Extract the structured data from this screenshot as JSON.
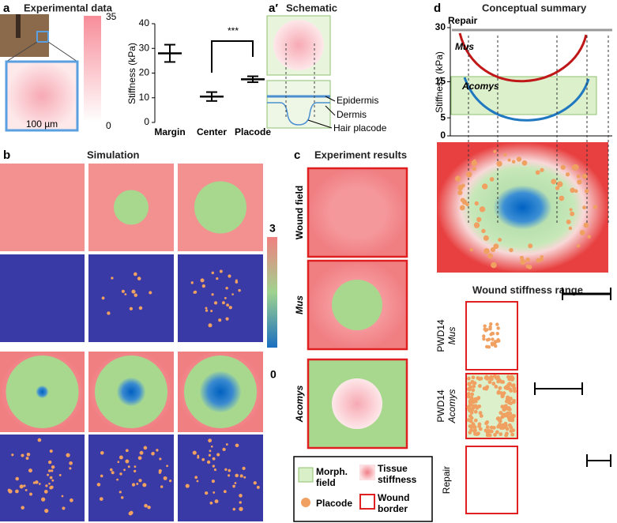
{
  "panels": {
    "a": {
      "label": "a",
      "title": "Experimental data",
      "scale_bar": "100 µm",
      "colorbar_ticks": [
        35,
        0
      ],
      "chart": {
        "ylabel": "Stiffness (kPa)",
        "categories": [
          "Margin",
          "Center",
          "Placode"
        ],
        "means": [
          28,
          10.5,
          17.5
        ],
        "errors": [
          3.5,
          1.8,
          1.2
        ],
        "ylim": [
          0,
          40
        ],
        "yticks": [
          0,
          10,
          20,
          30,
          40
        ],
        "significance": "***"
      }
    },
    "a_prime": {
      "label": "a′",
      "title": "Schematic",
      "labels": [
        "Epidermis",
        "Dermis",
        "Hair placode"
      ]
    },
    "b": {
      "label": "b",
      "title": "Simulation",
      "colorbar_ticks": [
        3.0,
        0
      ]
    },
    "c": {
      "label": "c",
      "title": "Experiment results",
      "rows": [
        "Wound field",
        "Mus",
        "Acomys"
      ],
      "legend": [
        "Morph. field",
        "Tissue stiffness",
        "Placode",
        "Wound border"
      ]
    },
    "d": {
      "label": "d",
      "title": "Conceptual summary",
      "ylabel": "Stiffness (kPa)",
      "ylim": [
        0,
        30
      ],
      "yticks": [
        0,
        5,
        15,
        30
      ],
      "series": [
        "Repair",
        "Mus",
        "Acomys"
      ],
      "subtitle": "Wound stiffness range",
      "rows": [
        [
          "PWD14",
          "Mus"
        ],
        [
          "PWD14",
          "Acomys"
        ],
        [
          "Repair"
        ]
      ]
    }
  }
}
